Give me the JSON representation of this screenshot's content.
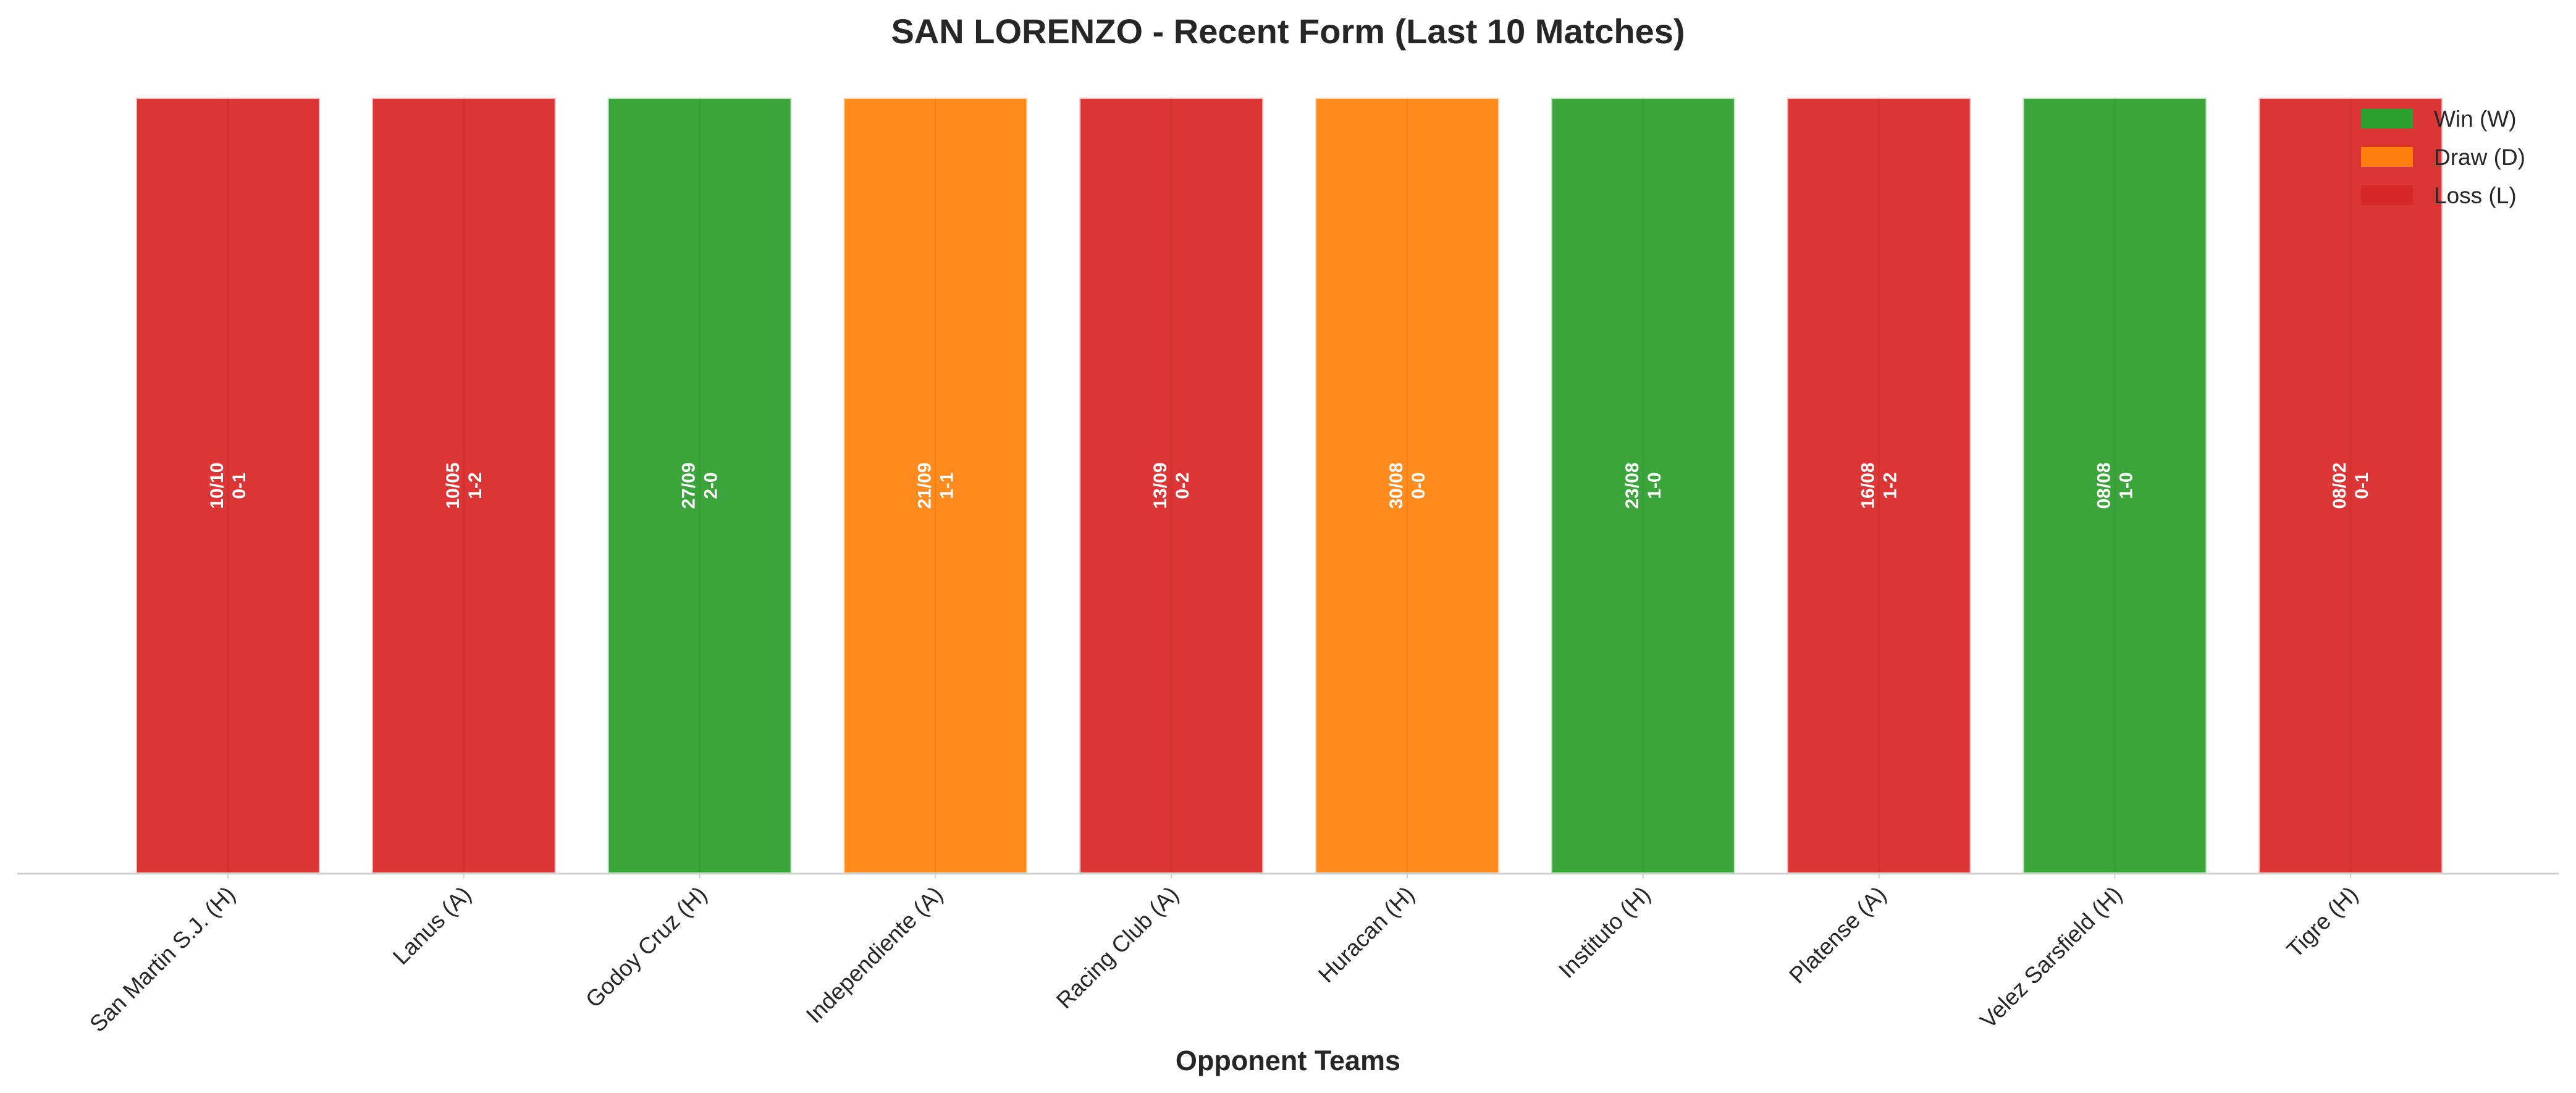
{
  "chart_data": {
    "type": "bar",
    "title": "SAN LORENZO - Recent Form (Last 10 Matches)",
    "xlabel": "Opponent Teams",
    "ylabel": "",
    "categories": [
      "San Martin S.J. (H)",
      "Lanus (A)",
      "Godoy Cruz (H)",
      "Independiente (A)",
      "Racing Club (A)",
      "Huracan (H)",
      "Instituto (H)",
      "Platense (A)",
      "Velez Sarsfield (H)",
      "Tigre (H)"
    ],
    "values": [
      1,
      1,
      1,
      1,
      1,
      1,
      1,
      1,
      1,
      1
    ],
    "results": [
      "L",
      "L",
      "W",
      "D",
      "L",
      "D",
      "W",
      "L",
      "W",
      "L"
    ],
    "dates": [
      "10/10",
      "10/05",
      "27/09",
      "21/09",
      "13/09",
      "30/08",
      "23/08",
      "16/08",
      "08/08",
      "08/02"
    ],
    "scores": [
      "0-1",
      "1-2",
      "2-0",
      "1-1",
      "0-2",
      "0-0",
      "1-0",
      "1-2",
      "1-0",
      "0-1"
    ],
    "colors": {
      "W": "#3ba53b",
      "D": "#ff8a1e",
      "L": "#dc3535"
    },
    "legend": [
      {
        "key": "W",
        "label": "Win (W)",
        "color": "#2ca02c"
      },
      {
        "key": "D",
        "label": "Draw (D)",
        "color": "#ff7f0e"
      },
      {
        "key": "L",
        "label": "Loss (L)",
        "color": "#d62728"
      }
    ],
    "legend_position": "top-right",
    "grid": false,
    "y_axis_visible": false
  }
}
